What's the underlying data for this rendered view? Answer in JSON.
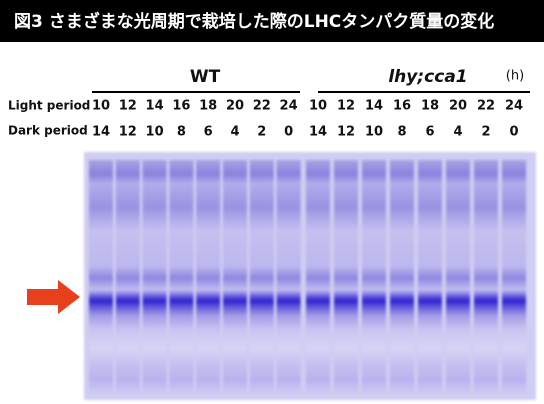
{
  "header": {
    "title": "図3 さまざまな光周期で栽培した際のLHCタンパク質量の変化"
  },
  "groups": [
    {
      "label": "WT"
    },
    {
      "label": "lhy;cca1"
    }
  ],
  "unit": "(h)",
  "rows": [
    {
      "label": "Light period",
      "values": [
        10,
        12,
        14,
        16,
        18,
        20,
        22,
        24,
        10,
        12,
        14,
        16,
        18,
        20,
        22,
        24
      ]
    },
    {
      "label": "Dark period",
      "values": [
        14,
        12,
        10,
        8,
        6,
        4,
        2,
        0,
        14,
        12,
        10,
        8,
        6,
        4,
        2,
        0
      ]
    }
  ]
}
